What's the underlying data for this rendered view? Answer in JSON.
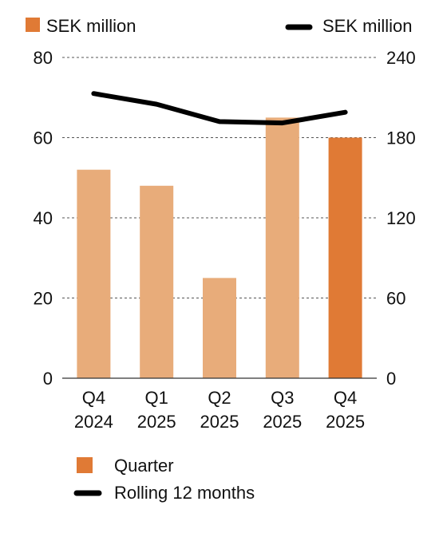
{
  "chart_data": {
    "type": "bar",
    "categories": [
      {
        "line1": "Q4",
        "line2": "2024"
      },
      {
        "line1": "Q1",
        "line2": "2025"
      },
      {
        "line1": "Q2",
        "line2": "2025"
      },
      {
        "line1": "Q3",
        "line2": "2025"
      },
      {
        "line1": "Q4",
        "line2": "2025"
      }
    ],
    "series": [
      {
        "name": "Quarter",
        "kind": "bar",
        "axis": "left",
        "values": [
          52,
          48,
          25,
          65,
          60
        ],
        "color": "#e8ac7a",
        "highlight_color": "#e07a35",
        "highlight_index": 4
      },
      {
        "name": "Rolling 12 months",
        "kind": "line",
        "axis": "right",
        "values": [
          213,
          205,
          192,
          191,
          199
        ],
        "color": "#000000"
      }
    ],
    "left_axis": {
      "label": "SEK million",
      "ylim": [
        0,
        80
      ],
      "ticks": [
        0,
        20,
        40,
        60,
        80
      ]
    },
    "right_axis": {
      "label": "SEK million",
      "ylim": [
        0,
        240
      ],
      "ticks": [
        0,
        60,
        120,
        180,
        240
      ]
    },
    "grid": true,
    "legend_position": "bottom-left"
  }
}
